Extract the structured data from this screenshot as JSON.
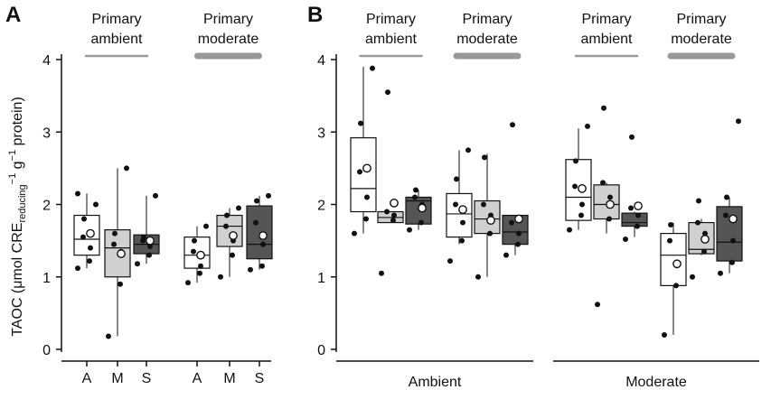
{
  "panels": [
    {
      "letter": "A"
    },
    {
      "letter": "B"
    }
  ],
  "chart_data": [
    {
      "type": "box",
      "panel": "A",
      "ylabel": "TAOC (μmol CRE",
      "ylabel_sub": "reducing",
      "ylabel_sup": "−1",
      "ylabel_tail": " g",
      "ylabel_sup2": "−1",
      "ylabel_end": " protein)",
      "ylim": [
        -0.1,
        4.2
      ],
      "yticks": [
        "0",
        "1",
        "2",
        "3",
        "4"
      ],
      "groups": [
        {
          "label_line1": "Primary",
          "label_line2": "ambient",
          "bar": "thin",
          "categories": [
            "A",
            "M",
            "S"
          ],
          "boxes": [
            {
              "fill": "#ffffff",
              "q1": 1.3,
              "median": 1.52,
              "q3": 1.85,
              "lo": 1.12,
              "hi": 2.15,
              "mean": 1.6,
              "points": [
                1.12,
                1.22,
                1.4,
                1.55,
                1.8,
                2.0,
                2.15
              ]
            },
            {
              "fill": "#d0d0d0",
              "q1": 1.0,
              "median": 1.4,
              "q3": 1.65,
              "lo": 0.18,
              "hi": 2.5,
              "mean": 1.32,
              "points": [
                0.18,
                0.9,
                1.35,
                1.45,
                1.6,
                2.5
              ]
            },
            {
              "fill": "#555555",
              "q1": 1.32,
              "median": 1.45,
              "q3": 1.58,
              "lo": 1.18,
              "hi": 2.12,
              "mean": 1.5,
              "points": [
                1.18,
                1.3,
                1.42,
                1.5,
                1.55,
                2.12
              ]
            }
          ]
        },
        {
          "label_line1": "Primary",
          "label_line2": "moderate",
          "bar": "thick",
          "categories": [
            "A",
            "M",
            "S"
          ],
          "boxes": [
            {
              "fill": "#ffffff",
              "q1": 1.12,
              "median": 1.3,
              "q3": 1.55,
              "lo": 0.92,
              "hi": 1.7,
              "mean": 1.3,
              "points": [
                0.92,
                1.05,
                1.15,
                1.35,
                1.5,
                1.7
              ]
            },
            {
              "fill": "#d0d0d0",
              "q1": 1.42,
              "median": 1.7,
              "q3": 1.85,
              "lo": 1.0,
              "hi": 1.95,
              "mean": 1.57,
              "points": [
                1.0,
                1.3,
                1.5,
                1.7,
                1.85,
                1.95
              ]
            },
            {
              "fill": "#555555",
              "q1": 1.25,
              "median": 1.45,
              "q3": 1.98,
              "lo": 1.1,
              "hi": 2.12,
              "mean": 1.57,
              "points": [
                1.1,
                1.15,
                1.45,
                1.75,
                2.05,
                2.12
              ]
            }
          ]
        }
      ]
    },
    {
      "type": "box",
      "panel": "B",
      "ylim": [
        -0.1,
        4.2
      ],
      "yticks": [
        "0",
        "1",
        "2",
        "3",
        "4"
      ],
      "xlabels": [
        "Ambient",
        "Moderate"
      ],
      "groups": [
        {
          "label_line1": "Primary",
          "label_line2": "ambient",
          "bar": "thin",
          "boxes": [
            {
              "fill": "#ffffff",
              "q1": 1.9,
              "median": 2.22,
              "q3": 2.92,
              "lo": 1.6,
              "hi": 3.9,
              "mean": 2.5,
              "points": [
                1.6,
                1.8,
                2.1,
                2.45,
                3.12,
                3.88
              ]
            },
            {
              "fill": "#d0d0d0",
              "q1": 1.75,
              "median": 1.82,
              "q3": 1.9,
              "lo": 1.75,
              "hi": 1.9,
              "mean": 2.02,
              "points": [
                1.05,
                1.78,
                1.85,
                1.9,
                3.55
              ]
            },
            {
              "fill": "#555555",
              "q1": 1.73,
              "median": 2.05,
              "q3": 2.1,
              "lo": 1.65,
              "hi": 2.2,
              "mean": 1.95,
              "points": [
                1.65,
                1.75,
                2.0,
                2.1,
                2.2
              ]
            }
          ]
        },
        {
          "label_line1": "Primary",
          "label_line2": "moderate",
          "bar": "thick",
          "boxes": [
            {
              "fill": "#ffffff",
              "q1": 1.55,
              "median": 1.87,
              "q3": 2.15,
              "lo": 1.45,
              "hi": 2.75,
              "mean": 1.93,
              "points": [
                1.22,
                1.5,
                1.75,
                2.0,
                2.35,
                2.75
              ]
            },
            {
              "fill": "#d0d0d0",
              "q1": 1.6,
              "median": 1.8,
              "q3": 2.05,
              "lo": 1.0,
              "hi": 2.7,
              "mean": 1.78,
              "points": [
                1.0,
                1.6,
                1.85,
                2.0,
                2.65
              ]
            },
            {
              "fill": "#555555",
              "q1": 1.45,
              "median": 1.62,
              "q3": 1.85,
              "lo": 1.3,
              "hi": 1.85,
              "mean": 1.8,
              "points": [
                1.3,
                1.45,
                1.6,
                1.75,
                3.1
              ]
            }
          ]
        },
        {
          "label_line1": "Primary",
          "label_line2": "ambient",
          "bar": "thin",
          "boxes": [
            {
              "fill": "#ffffff",
              "q1": 1.78,
              "median": 2.1,
              "q3": 2.62,
              "lo": 1.65,
              "hi": 3.05,
              "mean": 2.22,
              "points": [
                1.65,
                1.85,
                2.0,
                2.25,
                2.6,
                3.08
              ]
            },
            {
              "fill": "#d0d0d0",
              "q1": 1.8,
              "median": 2.0,
              "q3": 2.27,
              "lo": 1.6,
              "hi": 2.3,
              "mean": 2.0,
              "points": [
                0.62,
                1.8,
                2.1,
                2.3,
                3.33
              ]
            },
            {
              "fill": "#555555",
              "q1": 1.7,
              "median": 1.75,
              "q3": 1.88,
              "lo": 1.55,
              "hi": 1.9,
              "mean": 1.98,
              "points": [
                1.52,
                1.7,
                1.85,
                1.95,
                2.93
              ]
            }
          ]
        },
        {
          "label_line1": "Primary",
          "label_line2": "moderate",
          "bar": "thick",
          "boxes": [
            {
              "fill": "#ffffff",
              "q1": 0.88,
              "median": 1.3,
              "q3": 1.6,
              "lo": 0.2,
              "hi": 1.75,
              "mean": 1.18,
              "points": [
                0.2,
                0.88,
                1.2,
                1.5,
                1.72
              ]
            },
            {
              "fill": "#d0d0d0",
              "q1": 1.32,
              "median": 1.38,
              "q3": 1.75,
              "lo": 1.3,
              "hi": 1.8,
              "mean": 1.52,
              "points": [
                1.0,
                1.35,
                1.6,
                1.75,
                2.05
              ]
            },
            {
              "fill": "#555555",
              "q1": 1.22,
              "median": 1.48,
              "q3": 1.97,
              "lo": 1.05,
              "hi": 2.1,
              "mean": 1.8,
              "points": [
                1.05,
                1.2,
                1.5,
                1.85,
                2.1,
                3.15
              ]
            }
          ]
        }
      ]
    }
  ]
}
